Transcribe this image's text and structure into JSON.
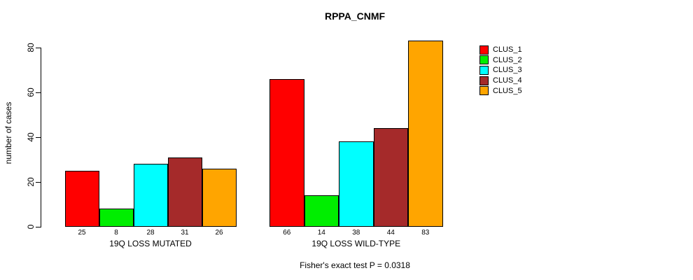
{
  "chart_data": {
    "type": "bar",
    "title": "RPPA_CNMF",
    "ylabel": "number of cases",
    "ylim": [
      0,
      80
    ],
    "yticks": [
      0,
      20,
      40,
      60,
      80
    ],
    "grid": false,
    "legend_position": "right",
    "bar_value_labels": true,
    "categories": [
      "19Q LOSS MUTATED",
      "19Q LOSS WILD-TYPE"
    ],
    "groups": [
      {
        "label": "19Q LOSS MUTATED",
        "values": [
          25,
          8,
          28,
          31,
          26
        ]
      },
      {
        "label": "19Q LOSS WILD-TYPE",
        "values": [
          66,
          14,
          38,
          44,
          83
        ]
      }
    ],
    "series": [
      {
        "name": "CLUS_1",
        "color": "#FF0000"
      },
      {
        "name": "CLUS_2",
        "color": "#00EE00"
      },
      {
        "name": "CLUS_3",
        "color": "#00FFFF"
      },
      {
        "name": "CLUS_4",
        "color": "#A52A2A"
      },
      {
        "name": "CLUS_5",
        "color": "#FFA500"
      }
    ],
    "annotation": "Fisher's exact test P = 0.0318"
  }
}
